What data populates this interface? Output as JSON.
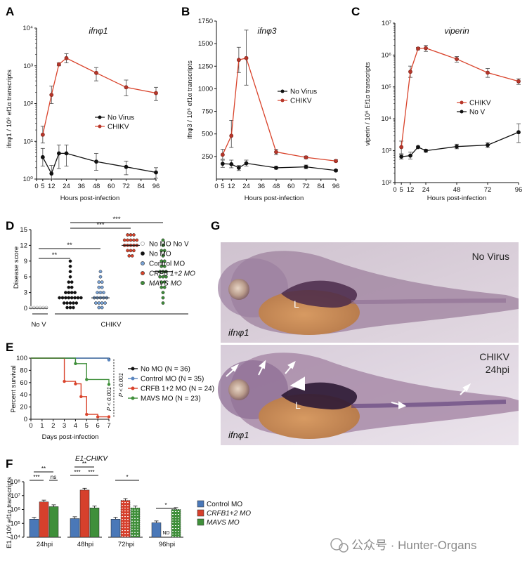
{
  "colors": {
    "red": "#d9432b",
    "black": "#111111",
    "blue": "#5a86bf",
    "green": "#3f8f3a",
    "gray": "#8a8a8a"
  },
  "panels": {
    "A": "A",
    "B": "B",
    "C": "C",
    "D": "D",
    "E": "E",
    "F": "F",
    "G": "G"
  },
  "chart_data": [
    {
      "id": "A",
      "type": "line",
      "title": "ifnφ1",
      "xlabel": "Hours post-infection",
      "ylabel": "ifnφ1 / 10⁶ ef1α transcripts",
      "yscale": "log",
      "ylim": [
        1,
        10000
      ],
      "xlim": [
        0,
        96
      ],
      "x_ticks": [
        "0",
        "5",
        "12",
        "24",
        "36",
        "48",
        "60",
        "72",
        "84",
        "96"
      ],
      "y_ticks": [
        "10⁰",
        "10¹",
        "10²",
        "10³",
        "10⁴"
      ],
      "legend": [
        "No Virus",
        "CHIKV"
      ],
      "series": [
        {
          "name": "CHIKV",
          "color": "red",
          "x": [
            5,
            12,
            18,
            24,
            48,
            72,
            96
          ],
          "y": [
            15,
            170,
            1100,
            1600,
            650,
            270,
            190
          ],
          "err": [
            [
              9,
              25
            ],
            [
              100,
              290
            ],
            [
              1000,
              1200
            ],
            [
              1200,
              2100
            ],
            [
              400,
              900
            ],
            [
              160,
              420
            ],
            [
              120,
              270
            ]
          ]
        },
        {
          "name": "No Virus",
          "color": "black",
          "x": [
            5,
            12,
            18,
            24,
            48,
            72,
            96
          ],
          "y": [
            3.8,
            1.4,
            4.8,
            4.8,
            2.9,
            2.1,
            1.5
          ],
          "err": [
            [
              2.2,
              6.5
            ],
            [
              1.0,
              2.3
            ],
            [
              1.9,
              8
            ],
            [
              2.2,
              8
            ],
            [
              1.7,
              4.8
            ],
            [
              1.3,
              3.0
            ],
            [
              1.05,
              2.0
            ]
          ]
        }
      ]
    },
    {
      "id": "B",
      "type": "line",
      "title": "ifnφ3",
      "xlabel": "Hours post-infection",
      "ylabel": "ifnφ3 / 10⁶ ef1α transcripts",
      "yscale": "linear",
      "ylim": [
        0,
        1750
      ],
      "xlim": [
        0,
        96
      ],
      "x_ticks": [
        "0",
        "5",
        "12",
        "24",
        "36",
        "48",
        "60",
        "72",
        "84",
        "96"
      ],
      "y_ticks": [
        "250",
        "500",
        "750",
        "1000",
        "1250",
        "1500",
        "1750"
      ],
      "legend": [
        "No Virus",
        "CHIKV"
      ],
      "series": [
        {
          "name": "CHIKV",
          "color": "red",
          "x": [
            5,
            12,
            18,
            24,
            48,
            72,
            96
          ],
          "y": [
            270,
            480,
            1320,
            1340,
            300,
            240,
            200
          ],
          "err": [
            [
              220,
              330
            ],
            [
              350,
              650
            ],
            [
              1180,
              1460
            ],
            [
              1040,
              1650
            ],
            [
              270,
              330
            ],
            [
              225,
              255
            ],
            [
              190,
              215
            ]
          ]
        },
        {
          "name": "No Virus",
          "color": "black",
          "x": [
            5,
            12,
            18,
            24,
            48,
            72,
            96
          ],
          "y": [
            170,
            165,
            125,
            175,
            125,
            135,
            95
          ],
          "err": [
            [
              130,
              210
            ],
            [
              125,
              210
            ],
            [
              95,
              150
            ],
            [
              145,
              210
            ],
            [
              110,
              140
            ],
            [
              115,
              155
            ],
            [
              85,
              105
            ]
          ]
        }
      ]
    },
    {
      "id": "C",
      "type": "line",
      "title": "viperin",
      "xlabel": "Hours post-infection",
      "ylabel": "viperin / 10⁶ Ef1α transcripts",
      "yscale": "log",
      "ylim": [
        100,
        10000000
      ],
      "xlim": [
        0,
        96
      ],
      "x_ticks": [
        "0",
        "5",
        "12",
        "24",
        "48",
        "72",
        "96"
      ],
      "y_ticks": [
        "10²",
        "10³",
        "10⁴",
        "10⁵",
        "10⁶",
        "10⁷"
      ],
      "legend": [
        "CHIKV",
        "No V"
      ],
      "series": [
        {
          "name": "CHIKV",
          "color": "red",
          "x": [
            5,
            12,
            18,
            24,
            48,
            72,
            96
          ],
          "y": [
            1300,
            300000,
            1600000,
            1650000,
            750000,
            280000,
            150000
          ],
          "err": [
            [
              800,
              2000
            ],
            [
              200000,
              450000
            ],
            [
              1450000,
              1750000
            ],
            [
              1300000,
              2000000
            ],
            [
              600000,
              900000
            ],
            [
              200000,
              380000
            ],
            [
              120000,
              180000
            ]
          ]
        },
        {
          "name": "No V",
          "color": "black",
          "x": [
            5,
            12,
            18,
            24,
            48,
            72,
            96
          ],
          "y": [
            650,
            700,
            1300,
            1000,
            1350,
            1500,
            3800
          ],
          "err": [
            [
              550,
              750
            ],
            [
              550,
              900
            ],
            [
              1200,
              1400
            ],
            [
              900,
              1100
            ],
            [
              1150,
              1600
            ],
            [
              1250,
              1800
            ],
            [
              1800,
              7000
            ]
          ]
        }
      ]
    },
    {
      "id": "D",
      "type": "scatter",
      "ylabel": "Disease score",
      "ylim": [
        0,
        15
      ],
      "y_ticks": [
        "0",
        "3",
        "6",
        "9",
        "12",
        "15"
      ],
      "group_labels": [
        "No V",
        "CHIKV"
      ],
      "significance": [
        "***",
        "***",
        "**",
        "**"
      ],
      "legend": [
        "No MO No V",
        "No MO",
        "Control MO",
        "CRFB 1+2 MO",
        "MAVS MO"
      ],
      "groups": [
        {
          "name": "No MO No V",
          "color": "white",
          "values": [
            0,
            0,
            0,
            0,
            0,
            0
          ]
        },
        {
          "name": "No MO",
          "color": "black",
          "values": [
            0,
            0,
            0,
            1,
            1,
            1,
            1,
            1,
            2,
            2,
            2,
            2,
            2,
            2,
            2,
            2,
            3,
            3,
            3,
            3,
            4,
            4,
            5,
            5,
            6,
            7,
            8,
            9
          ]
        },
        {
          "name": "Control MO",
          "color": "blue",
          "values": [
            0,
            0,
            1,
            1,
            1,
            1,
            2,
            2,
            2,
            2,
            2,
            3,
            3,
            3,
            4,
            4,
            5,
            5,
            6,
            7
          ]
        },
        {
          "name": "CRFB 1+2 MO",
          "color": "red",
          "values": [
            10,
            10,
            11,
            11,
            11,
            12,
            12,
            12,
            12,
            12,
            13,
            13,
            13,
            13,
            13,
            14,
            14,
            14
          ]
        },
        {
          "name": "MAVS MO",
          "color": "green",
          "values": [
            1,
            2,
            3,
            4,
            4,
            5,
            5,
            6,
            6,
            6,
            7,
            7,
            7,
            8,
            8,
            9,
            9,
            10,
            11,
            11,
            12,
            13
          ]
        }
      ]
    },
    {
      "id": "E",
      "type": "line",
      "xlabel": "Days post-infection",
      "ylabel": "Percent survival",
      "ylim": [
        0,
        100
      ],
      "xlim": [
        0,
        7
      ],
      "x_ticks": [
        "0",
        "1",
        "2",
        "3",
        "4",
        "5",
        "6",
        "7"
      ],
      "y_ticks": [
        "0",
        "20",
        "40",
        "60",
        "80",
        "100"
      ],
      "pvalues": [
        "P < 0.001",
        "P < 0.001"
      ],
      "series": [
        {
          "name": "No MO (N = 36)",
          "color": "black",
          "steps": [
            [
              0,
              100
            ],
            [
              7,
              98
            ]
          ]
        },
        {
          "name": "Control MO (N = 35)",
          "color": "blue",
          "steps": [
            [
              0,
              100
            ],
            [
              7,
              97
            ]
          ]
        },
        {
          "name": "CRFB 1+2 MO (N = 24)",
          "color": "red",
          "steps": [
            [
              0,
              100
            ],
            [
              3,
              62
            ],
            [
              4,
              58
            ],
            [
              4.5,
              37
            ],
            [
              5,
              8
            ],
            [
              6,
              4
            ],
            [
              7,
              4
            ]
          ]
        },
        {
          "name": "MAVS MO (N = 23)",
          "color": "green",
          "steps": [
            [
              0,
              100
            ],
            [
              4,
              91
            ],
            [
              5,
              65
            ],
            [
              7,
              57
            ]
          ]
        }
      ]
    },
    {
      "id": "F",
      "type": "bar",
      "title": "E1-CHIKV",
      "ylabel": "E1 / 10⁶ ef1α transcripts",
      "yscale": "log",
      "ylim": [
        10000,
        100000000
      ],
      "categories": [
        "24hpi",
        "48hpi",
        "72hpi",
        "96hpi"
      ],
      "y_ticks": [
        "10⁴",
        "10⁵",
        "10⁶",
        "10⁷",
        "10⁸"
      ],
      "nd_label": "ND",
      "significance": [
        "***",
        "ns",
        "**",
        "***",
        "***",
        "**",
        "*",
        "*"
      ],
      "series": [
        {
          "name": "Control MO",
          "color": "blue",
          "values": [
            200000,
            220000,
            200000,
            110000
          ]
        },
        {
          "name": "CRFB1+2 MO",
          "color": "red",
          "values": [
            3500000,
            25000000,
            4500000,
            null
          ]
        },
        {
          "name": "MAVS MO",
          "color": "green",
          "values": [
            1600000,
            1300000,
            1300000,
            1000000
          ]
        }
      ]
    }
  ],
  "photo_g": {
    "top_label": "No Virus",
    "bottom_label_1": "CHIKV",
    "bottom_label_2": "24hpi",
    "gene_label_top": "ifnφ1",
    "gene_label_bottom": "ifnφ1",
    "liver_label_top": "L",
    "liver_label_bottom": "L"
  },
  "watermark": "公众号 · Hunter-Organs"
}
